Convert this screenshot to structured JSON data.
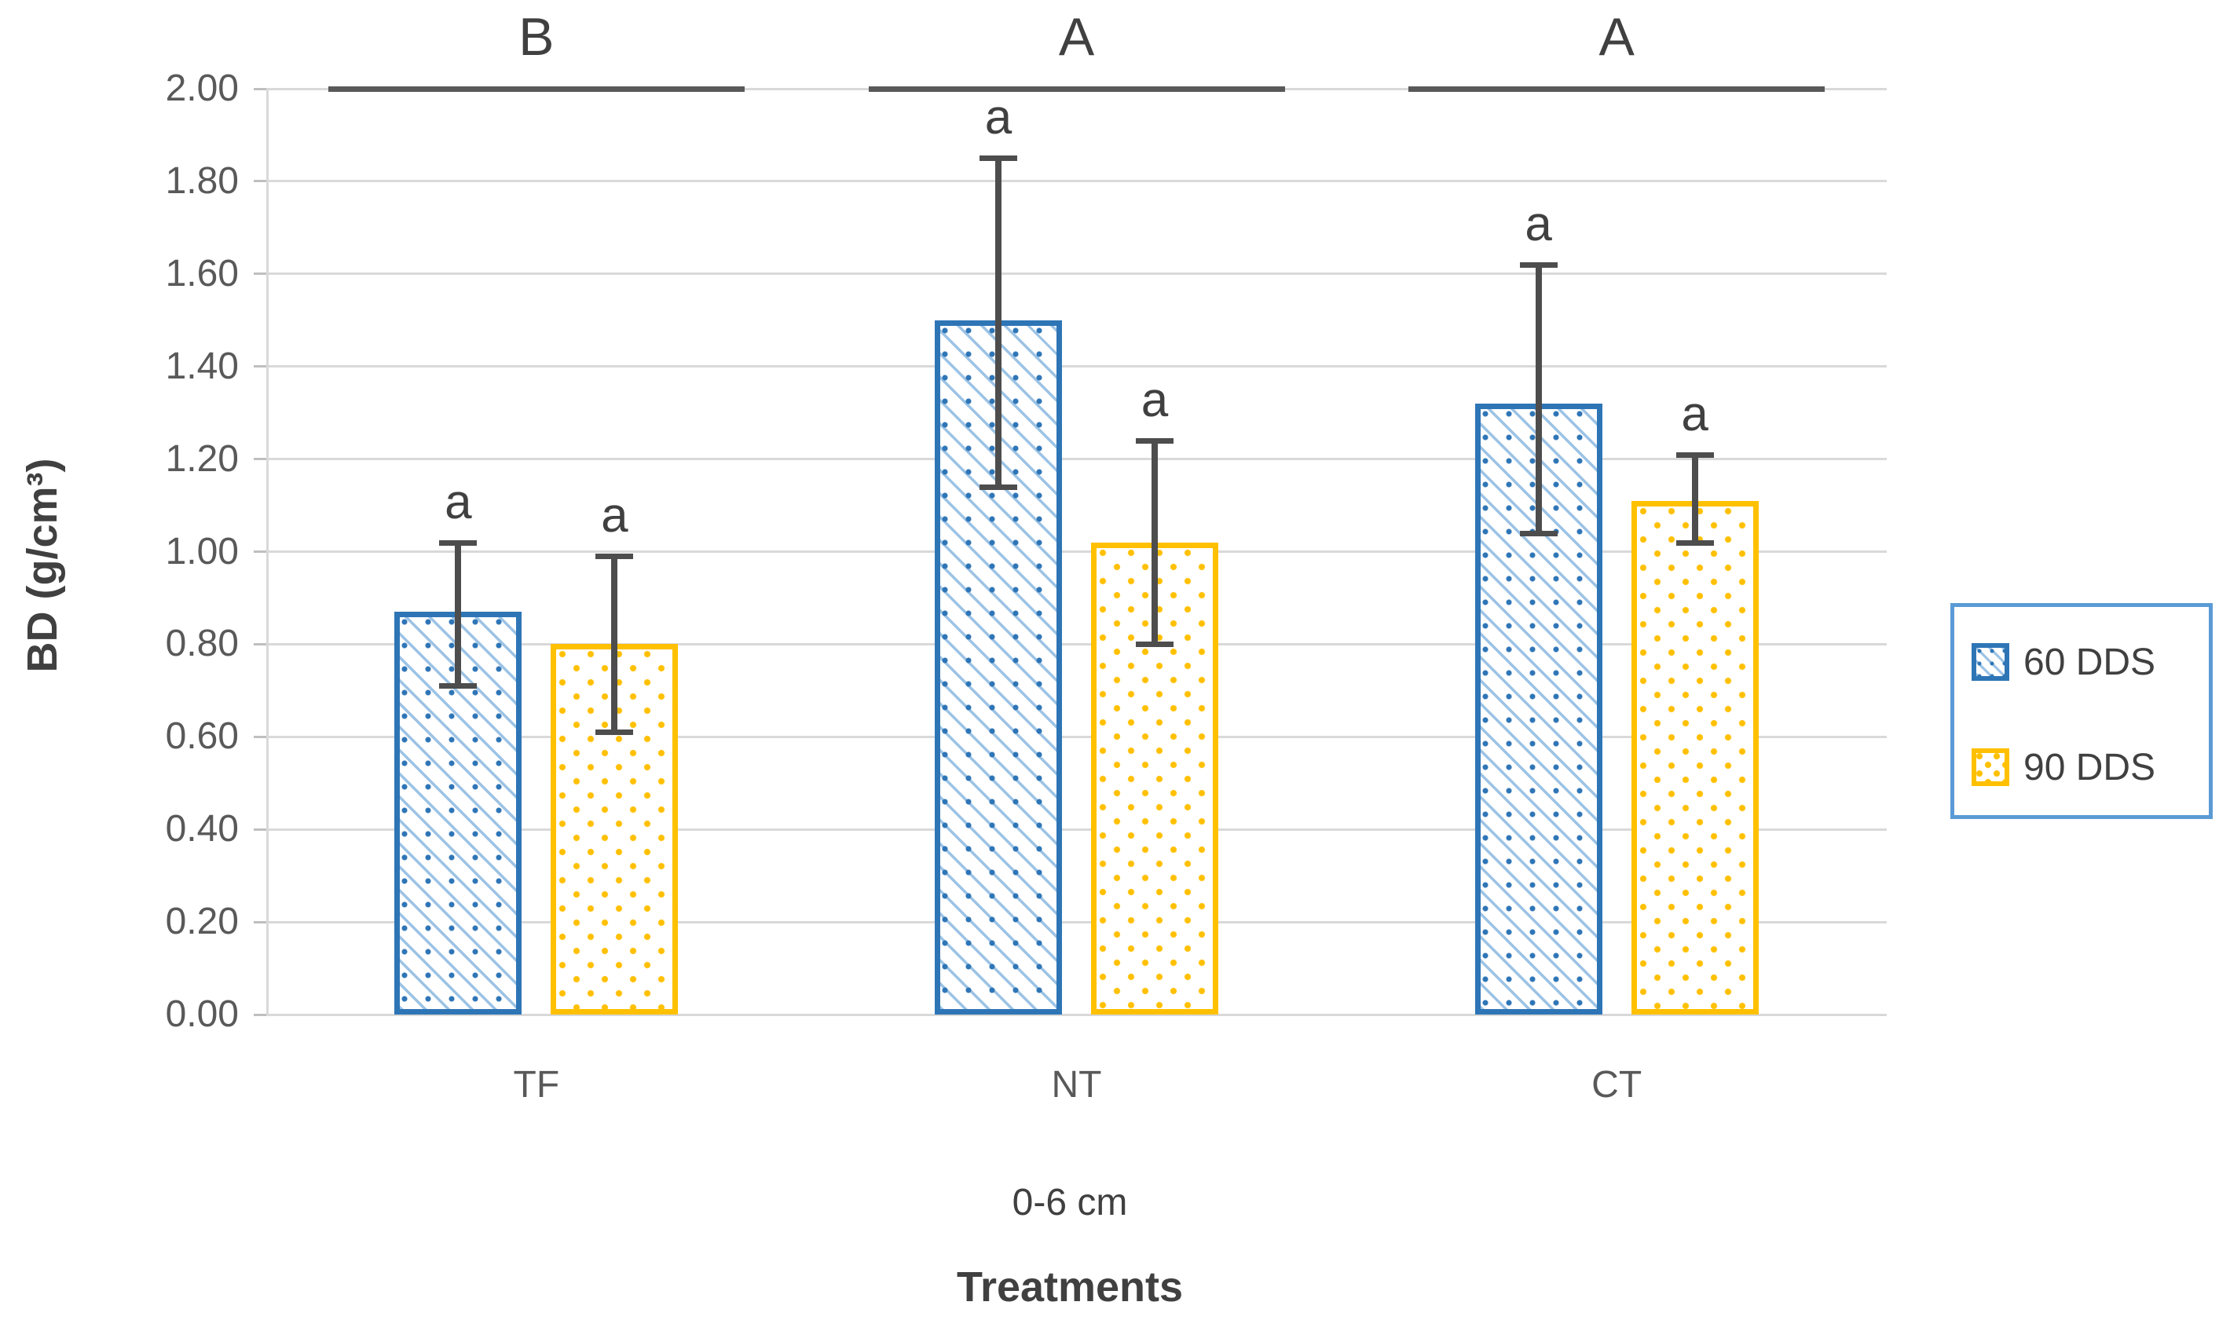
{
  "chart_data": {
    "type": "bar",
    "title": "",
    "xlabel": "Treatments",
    "x_sublabel": "0-6 cm",
    "ylabel": "BD (g/cm³)",
    "ylim": [
      0,
      2.0
    ],
    "ytick_labels": [
      "0.00",
      "0.20",
      "0.40",
      "0.60",
      "0.80",
      "1.00",
      "1.20",
      "1.40",
      "1.60",
      "1.80",
      "2.00"
    ],
    "categories": [
      "TF",
      "NT",
      "CT"
    ],
    "group_significance_letters": [
      "B",
      "A",
      "A"
    ],
    "series": [
      {
        "name": "60 DDS",
        "pattern": "diagonal-hatch",
        "color": "#2E75B6",
        "values": [
          0.87,
          1.5,
          1.32
        ],
        "error_low": [
          0.71,
          1.14,
          1.04
        ],
        "error_high": [
          1.02,
          1.85,
          1.62
        ],
        "bar_letters": [
          "a",
          "a",
          "a"
        ]
      },
      {
        "name": "90 DDS",
        "pattern": "dots",
        "color": "#FFC000",
        "values": [
          0.8,
          1.02,
          1.11
        ],
        "error_low": [
          0.61,
          0.8,
          1.02
        ],
        "error_high": [
          0.99,
          1.24,
          1.21
        ],
        "bar_letters": [
          "a",
          "a",
          "a"
        ]
      }
    ],
    "legend": {
      "position": "right",
      "items": [
        "60 DDS",
        "90 DDS"
      ]
    },
    "grid": true,
    "colors": {
      "series_60dds_border": "#2E75B6",
      "series_60dds_hatch": "#9CC3E5",
      "series_90dds": "#FFC000",
      "gridline": "#D9D9D9",
      "error_bar": "#4D4D4D",
      "tick_label": "#595959",
      "letter_text": "#404040",
      "legend_border": "#5B9BD5",
      "background": "#FFFFFF"
    }
  }
}
